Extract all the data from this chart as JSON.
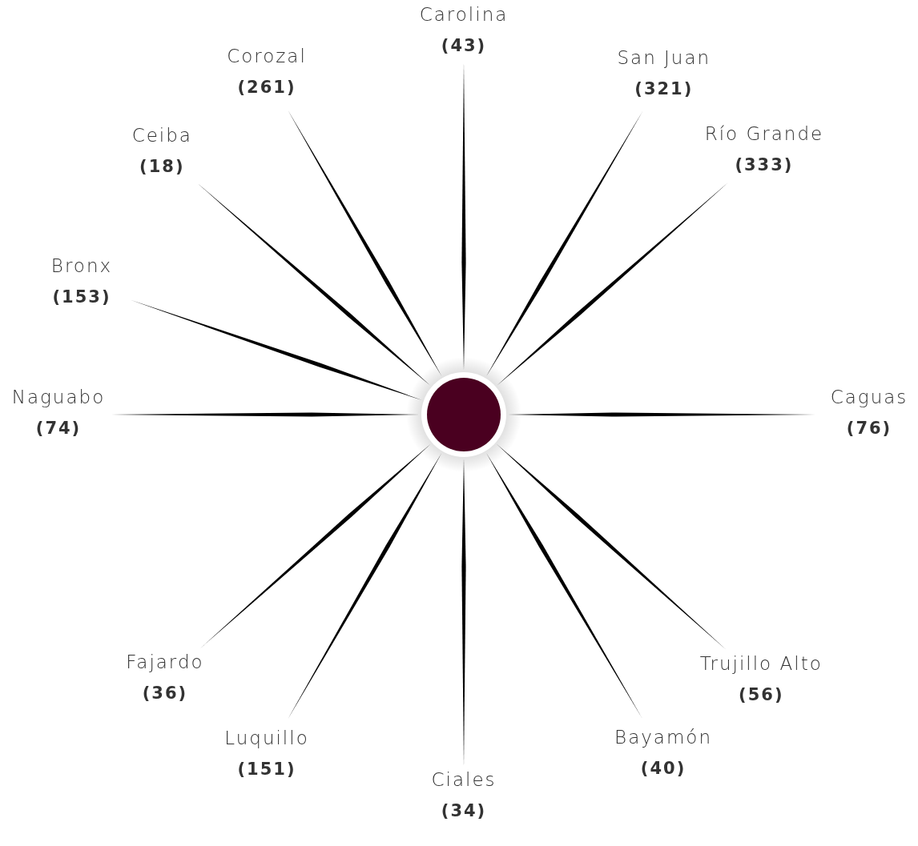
{
  "chart_data": {
    "type": "other",
    "categories": [
      "Carolina",
      "San Juan",
      "Río Grande",
      "Caguas",
      "Trujillo Alto",
      "Bayamón",
      "Ciales",
      "Luquillo",
      "Fajardo",
      "Naguabo",
      "Bronx",
      "Ceiba",
      "Corozal"
    ],
    "values": [
      43,
      321,
      333,
      76,
      56,
      40,
      34,
      151,
      36,
      74,
      153,
      18,
      261
    ],
    "value_labels": [
      "(43)",
      "(321)",
      "(333)",
      "(76)",
      "(56)",
      "(40)",
      "(34)",
      "(151)",
      "(36)",
      "(74)",
      "(153)",
      "(18)",
      "(261)"
    ],
    "color": "#000000"
  }
}
